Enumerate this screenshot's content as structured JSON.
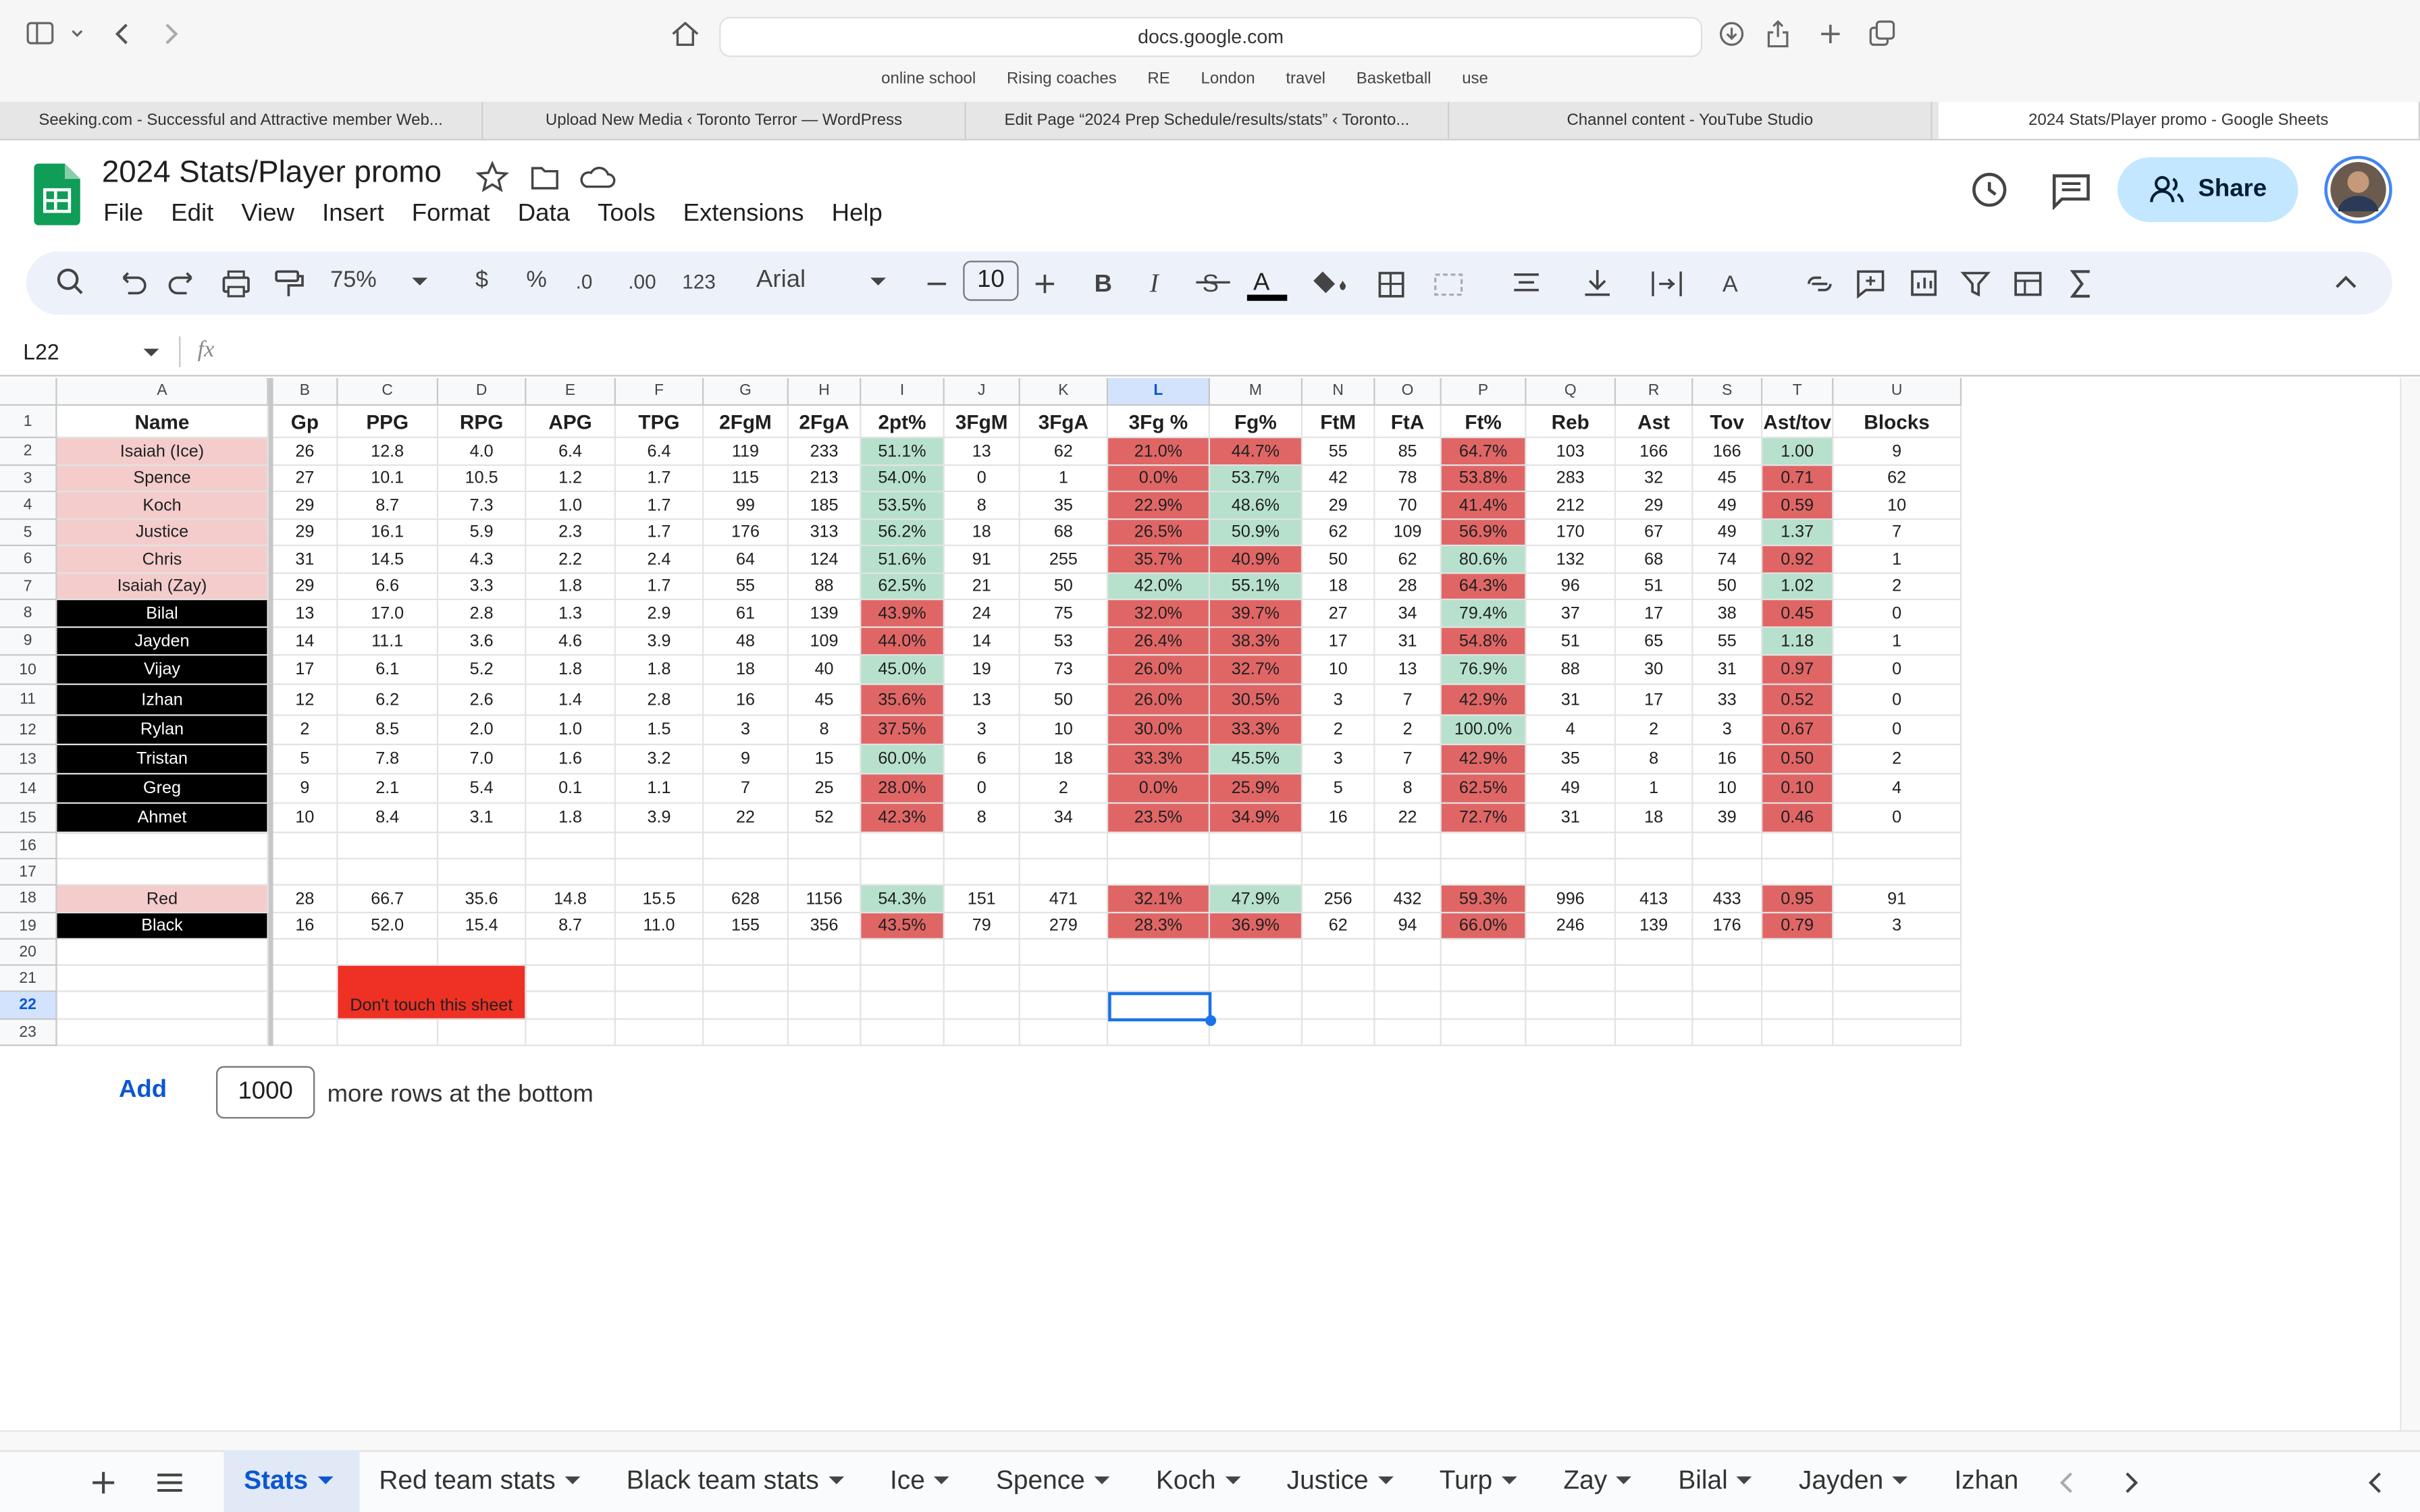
{
  "browser": {
    "url": "docs.google.com",
    "bookmarks": [
      "online school",
      "Rising coaches",
      "RE",
      "London",
      "travel",
      "Basketball",
      "use"
    ],
    "tabs": [
      "Seeking.com - Successful and Attractive member Web...",
      "Upload New Media ‹ Toronto Terror — WordPress",
      "Edit Page “2024 Prep Schedule/results/stats” ‹ Toronto...",
      "Channel content - YouTube Studio",
      "2024 Stats/Player promo - Google Sheets"
    ]
  },
  "doc": {
    "title": "2024 Stats/Player promo",
    "menus": [
      "File",
      "Edit",
      "View",
      "Insert",
      "Format",
      "Data",
      "Tools",
      "Extensions",
      "Help"
    ],
    "share": "Share"
  },
  "toolbar": {
    "zoom": "75%",
    "currency": "$",
    "percent": "%",
    "decrease_decimal": ".0",
    "increase_decimal": ".00",
    "number_format": "123",
    "font": "Arial",
    "font_size": "10"
  },
  "formula_bar": {
    "name_box": "L22",
    "icon": "fx"
  },
  "sheet": {
    "columns": [
      "A",
      "B",
      "C",
      "D",
      "E",
      "F",
      "G",
      "H",
      "I",
      "J",
      "K",
      "L",
      "M",
      "N",
      "O",
      "P",
      "Q",
      "R",
      "S",
      "T",
      "U"
    ],
    "row_numbers": [
      1,
      2,
      3,
      4,
      5,
      6,
      7,
      8,
      9,
      10,
      11,
      12,
      13,
      14,
      15,
      16,
      17,
      18,
      19,
      20,
      21,
      22,
      23
    ],
    "header": [
      "Name",
      "Gp",
      "PPG",
      "RPG",
      "APG",
      "TPG",
      "2FgM",
      "2FgA",
      "2pt%",
      "3FgM",
      "3FgA",
      "3Fg %",
      "Fg%",
      "FtM",
      "FtA",
      "Ft%",
      "Reb",
      "Ast",
      "Tov",
      "Ast/tov",
      "Blocks"
    ],
    "rows": [
      [
        "Isaiah (Ice)",
        "26",
        "12.8",
        "4.0",
        "6.4",
        "6.4",
        "119",
        "233",
        "51.1%",
        "13",
        "62",
        "21.0%",
        "44.7%",
        "55",
        "85",
        "64.7%",
        "103",
        "166",
        "166",
        "1.00",
        "9"
      ],
      [
        "Spence",
        "27",
        "10.1",
        "10.5",
        "1.2",
        "1.7",
        "115",
        "213",
        "54.0%",
        "0",
        "1",
        "0.0%",
        "53.7%",
        "42",
        "78",
        "53.8%",
        "283",
        "32",
        "45",
        "0.71",
        "62"
      ],
      [
        "Koch",
        "29",
        "8.7",
        "7.3",
        "1.0",
        "1.7",
        "99",
        "185",
        "53.5%",
        "8",
        "35",
        "22.9%",
        "48.6%",
        "29",
        "70",
        "41.4%",
        "212",
        "29",
        "49",
        "0.59",
        "10"
      ],
      [
        "Justice",
        "29",
        "16.1",
        "5.9",
        "2.3",
        "1.7",
        "176",
        "313",
        "56.2%",
        "18",
        "68",
        "26.5%",
        "50.9%",
        "62",
        "109",
        "56.9%",
        "170",
        "67",
        "49",
        "1.37",
        "7"
      ],
      [
        "Chris",
        "31",
        "14.5",
        "4.3",
        "2.2",
        "2.4",
        "64",
        "124",
        "51.6%",
        "91",
        "255",
        "35.7%",
        "40.9%",
        "50",
        "62",
        "80.6%",
        "132",
        "68",
        "74",
        "0.92",
        "1"
      ],
      [
        "Isaiah (Zay)",
        "29",
        "6.6",
        "3.3",
        "1.8",
        "1.7",
        "55",
        "88",
        "62.5%",
        "21",
        "50",
        "42.0%",
        "55.1%",
        "18",
        "28",
        "64.3%",
        "96",
        "51",
        "50",
        "1.02",
        "2"
      ],
      [
        "Bilal",
        "13",
        "17.0",
        "2.8",
        "1.3",
        "2.9",
        "61",
        "139",
        "43.9%",
        "24",
        "75",
        "32.0%",
        "39.7%",
        "27",
        "34",
        "79.4%",
        "37",
        "17",
        "38",
        "0.45",
        "0"
      ],
      [
        "Jayden",
        "14",
        "11.1",
        "3.6",
        "4.6",
        "3.9",
        "48",
        "109",
        "44.0%",
        "14",
        "53",
        "26.4%",
        "38.3%",
        "17",
        "31",
        "54.8%",
        "51",
        "65",
        "55",
        "1.18",
        "1"
      ],
      [
        "Vijay",
        "17",
        "6.1",
        "5.2",
        "1.8",
        "1.8",
        "18",
        "40",
        "45.0%",
        "19",
        "73",
        "26.0%",
        "32.7%",
        "10",
        "13",
        "76.9%",
        "88",
        "30",
        "31",
        "0.97",
        "0"
      ],
      [
        "Izhan",
        "12",
        "6.2",
        "2.6",
        "1.4",
        "2.8",
        "16",
        "45",
        "35.6%",
        "13",
        "50",
        "26.0%",
        "30.5%",
        "3",
        "7",
        "42.9%",
        "31",
        "17",
        "33",
        "0.52",
        "0"
      ],
      [
        "Rylan",
        "2",
        "8.5",
        "2.0",
        "1.0",
        "1.5",
        "3",
        "8",
        "37.5%",
        "3",
        "10",
        "30.0%",
        "33.3%",
        "2",
        "2",
        "100.0%",
        "4",
        "2",
        "3",
        "0.67",
        "0"
      ],
      [
        "Tristan",
        "5",
        "7.8",
        "7.0",
        "1.6",
        "3.2",
        "9",
        "15",
        "60.0%",
        "6",
        "18",
        "33.3%",
        "45.5%",
        "3",
        "7",
        "42.9%",
        "35",
        "8",
        "16",
        "0.50",
        "2"
      ],
      [
        "Greg",
        "9",
        "2.1",
        "5.4",
        "0.1",
        "1.1",
        "7",
        "25",
        "28.0%",
        "0",
        "2",
        "0.0%",
        "25.9%",
        "5",
        "8",
        "62.5%",
        "49",
        "1",
        "10",
        "0.10",
        "4"
      ],
      [
        "Ahmet",
        "10",
        "8.4",
        "3.1",
        "1.8",
        "3.9",
        "22",
        "52",
        "42.3%",
        "8",
        "34",
        "23.5%",
        "34.9%",
        "16",
        "22",
        "72.7%",
        "31",
        "18",
        "39",
        "0.46",
        "0"
      ],
      [
        "Red",
        "28",
        "66.7",
        "35.6",
        "14.8",
        "15.5",
        "628",
        "1156",
        "54.3%",
        "151",
        "471",
        "32.1%",
        "47.9%",
        "256",
        "432",
        "59.3%",
        "996",
        "413",
        "433",
        "0.95",
        "91"
      ],
      [
        "Black",
        "16",
        "52.0",
        "15.4",
        "8.7",
        "11.0",
        "155",
        "356",
        "43.5%",
        "79",
        "279",
        "28.3%",
        "36.9%",
        "62",
        "94",
        "66.0%",
        "246",
        "139",
        "176",
        "0.79",
        "3"
      ]
    ],
    "note": "Don't touch this sheet"
  },
  "add_rows": {
    "button": "Add",
    "count": "1000",
    "suffix": "more rows at the bottom"
  },
  "sheet_tabs": [
    "Stats",
    "Red team stats",
    "Black team stats",
    "Ice",
    "Spence",
    "Koch",
    "Justice",
    "Turp",
    "Zay",
    "Bilal",
    "Jayden",
    "Izhan"
  ]
}
